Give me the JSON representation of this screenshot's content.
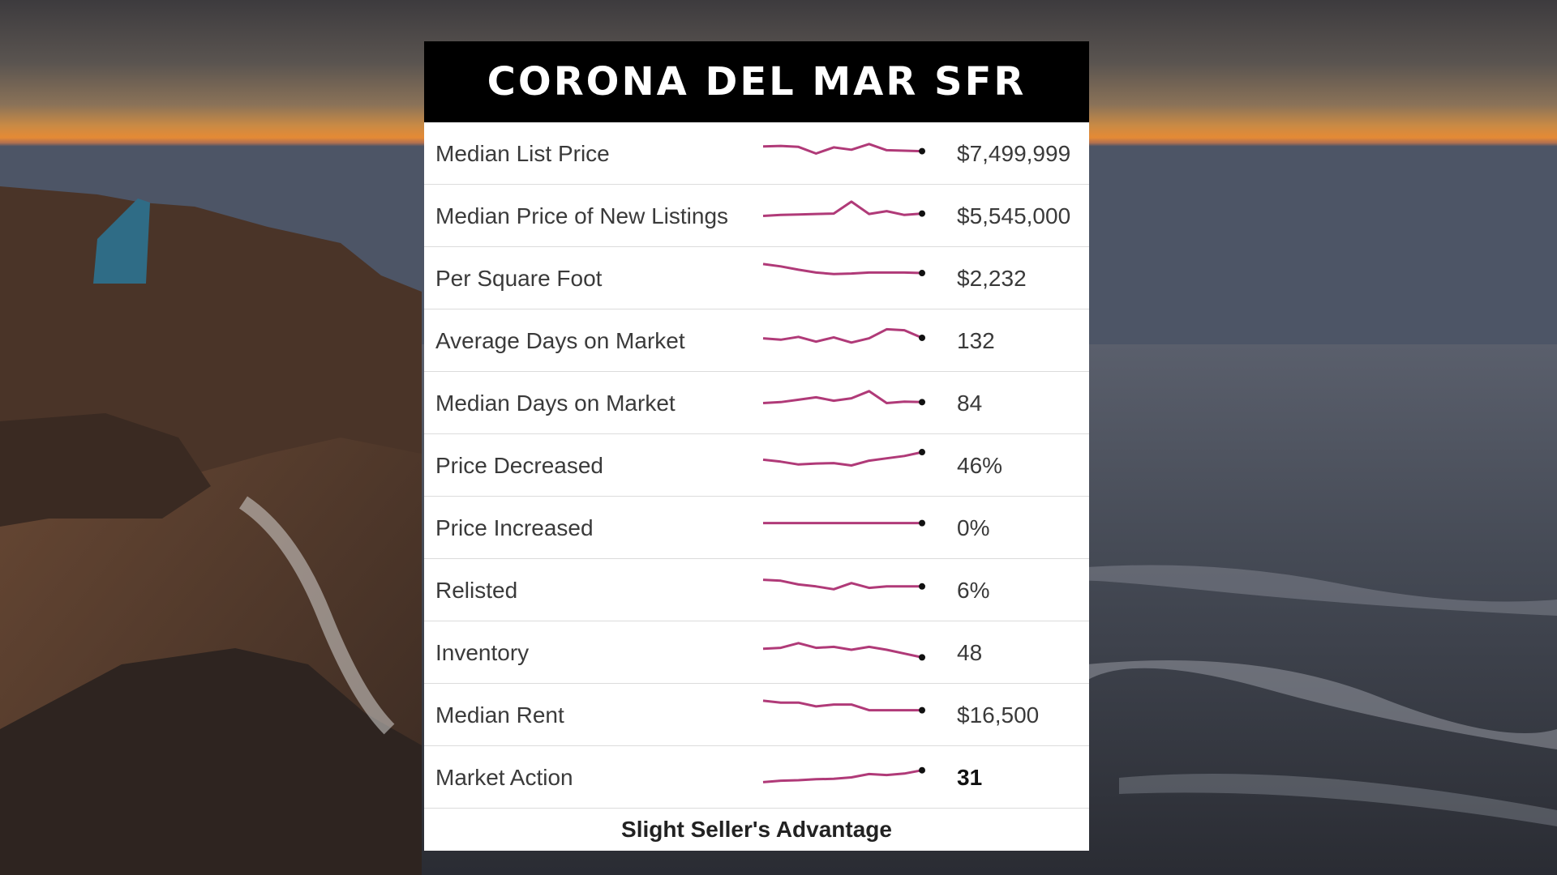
{
  "colors": {
    "header_bg": "#000000",
    "header_text": "#ffffff",
    "sparkline": "#b03a78",
    "sparkline_endpoint": "#111111",
    "card_bg": "#ffffff"
  },
  "background": {
    "scene": "coastal sunset with rocky cliffs and ocean waves"
  },
  "header": {
    "title": "CORONA DEL MAR SFR"
  },
  "metrics": [
    {
      "label": "Median List Price",
      "value": "$7,499,999",
      "trend": [
        55,
        56,
        54,
        40,
        53,
        48,
        60,
        47,
        46,
        45
      ]
    },
    {
      "label": "Median Price of New Listings",
      "value": "$5,545,000",
      "trend": [
        40,
        42,
        43,
        44,
        45,
        70,
        44,
        50,
        42,
        45
      ]
    },
    {
      "label": "Per Square Foot",
      "value": "$2,232",
      "trend": [
        70,
        65,
        58,
        52,
        49,
        50,
        52,
        52,
        52,
        51
      ]
    },
    {
      "label": "Average Days on Market",
      "value": "132",
      "trend": [
        45,
        42,
        48,
        38,
        47,
        36,
        45,
        64,
        62,
        46
      ]
    },
    {
      "label": "Median Days on Market",
      "value": "84",
      "trend": [
        40,
        42,
        47,
        52,
        45,
        50,
        65,
        40,
        43,
        42
      ]
    },
    {
      "label": "Price Decreased",
      "value": "46%",
      "trend": [
        52,
        48,
        42,
        44,
        45,
        40,
        50,
        55,
        60,
        68
      ]
    },
    {
      "label": "Price Increased",
      "value": "0%",
      "trend": [
        50,
        50,
        50,
        50,
        50,
        50,
        50,
        50,
        50,
        50
      ]
    },
    {
      "label": "Relisted",
      "value": "6%",
      "trend": [
        62,
        60,
        52,
        48,
        42,
        55,
        45,
        48,
        48,
        48
      ]
    },
    {
      "label": "Inventory",
      "value": "48",
      "trend": [
        48,
        50,
        60,
        50,
        52,
        46,
        52,
        46,
        38,
        30
      ]
    },
    {
      "label": "Median Rent",
      "value": "$16,500",
      "trend": [
        70,
        66,
        66,
        58,
        62,
        62,
        50,
        50,
        50,
        50
      ]
    },
    {
      "label": "Market Action",
      "value": "31",
      "trend": [
        30,
        33,
        34,
        36,
        37,
        40,
        47,
        45,
        48,
        55
      ]
    }
  ],
  "market_sentiment": "Slight Seller's Advantage"
}
